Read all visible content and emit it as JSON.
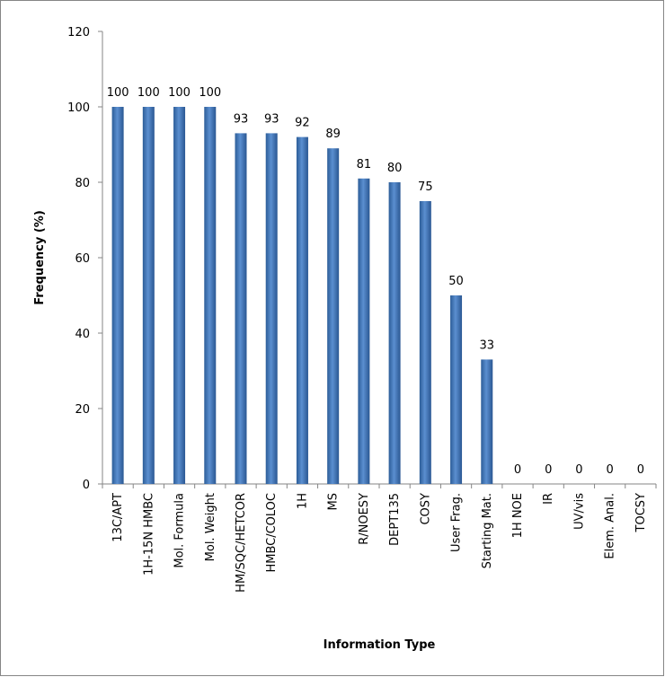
{
  "chart_data": {
    "type": "bar",
    "y_label": "Frequency (%)",
    "x_label": "Information Type",
    "categories": [
      "13C/APT",
      "1H-15N HMBC",
      "Mol. Formula",
      "Mol. Weight",
      "HM/SQC/HETCOR",
      "HMBC/COLOC",
      "1H",
      "MS",
      "R/NOESY",
      "DEPT135",
      "COSY",
      "User Frag.",
      "Starting Mat.",
      "1H NOE",
      "IR",
      "UV/vis",
      "Elem. Anal.",
      "TOCSY"
    ],
    "values": [
      100,
      100,
      100,
      100,
      93,
      93,
      92,
      89,
      81,
      80,
      75,
      50,
      33,
      0,
      0,
      0,
      0,
      0
    ],
    "color": "#4f81bd",
    "ylim": [
      0,
      120
    ],
    "yticks": [
      0,
      20,
      40,
      60,
      80,
      100,
      120
    ],
    "grid": false
  }
}
